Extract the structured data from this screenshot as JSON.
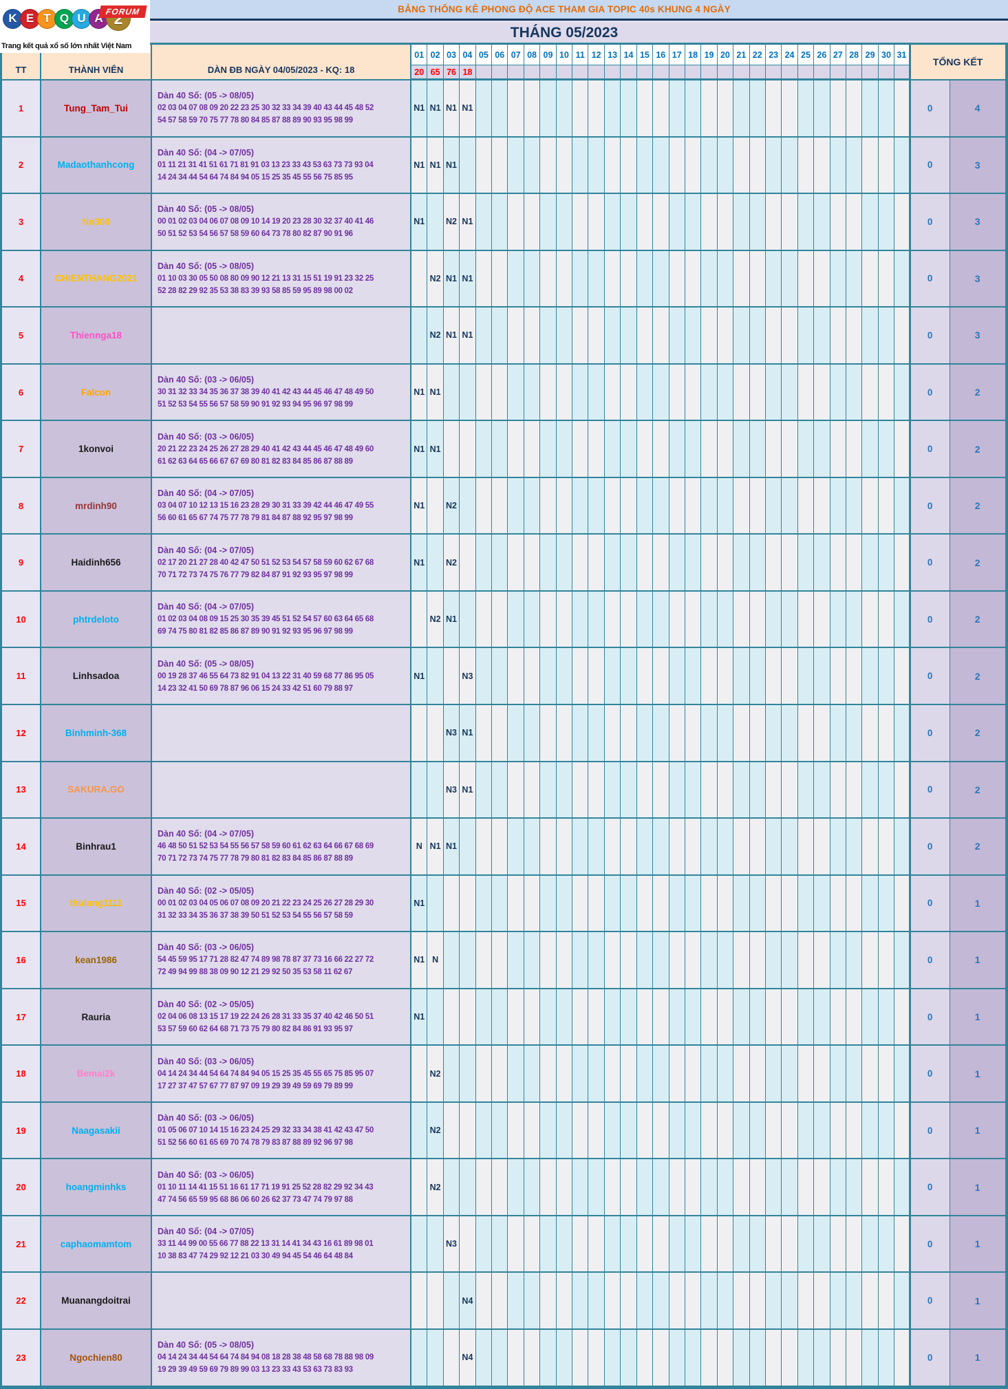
{
  "logo": {
    "brand_letters": [
      "K",
      "E",
      "T",
      "Q",
      "U",
      "A",
      "2"
    ],
    "brand_letter_colors": [
      "#2459a8",
      "#d2232a",
      "#f7941d",
      "#00a651",
      "#27aae1",
      "#92278f",
      "#a8852a"
    ],
    "forum_label": "FORUM",
    "tagline": "Trang kết quả xổ số lớn nhất Việt Nam"
  },
  "header": {
    "title": "BẢNG THỐNG KÊ PHONG ĐỘ ACE THAM GIA TOPIC 40s KHUNG 4 NGÀY",
    "subtitle": "THÁNG 05/2023"
  },
  "colors": {
    "teal_border": "#31849b",
    "day_cell_cyan": "#d9eef4",
    "day_cell_plain": "#f0f0f2",
    "header_peach": "#fde4cd",
    "title_orange": "#e36c09",
    "navy": "#17365d",
    "red": "#ff0000",
    "purple_text": "#7030a0",
    "member_col_bg": "#cbc1da",
    "total_text": "#2e75b6"
  },
  "table": {
    "col_tt": "TT",
    "col_member": "THÀNH VIÊN",
    "col_dan": "DÀN ĐB NGÀY 04/05/2023 - KQ: 18",
    "col_total": "TỔNG KẾT",
    "day_columns": [
      "01",
      "02",
      "03",
      "04",
      "05",
      "06",
      "07",
      "08",
      "09",
      "10",
      "11",
      "12",
      "13",
      "14",
      "15",
      "16",
      "17",
      "18",
      "19",
      "20",
      "21",
      "22",
      "23",
      "24",
      "25",
      "26",
      "27",
      "28",
      "29",
      "30",
      "31"
    ],
    "day_results": {
      "01": "20",
      "02": "65",
      "03": "76",
      "04": "18"
    },
    "rows": [
      {
        "tt": "1",
        "member": "Tung_Tam_Tui",
        "member_color": "#c00000",
        "dan_title": "Dàn 40 Số: (05 -> 08/05)",
        "dan_line1": "02 03 04 07 08 09 20 22 23 25 30 32 33 34 39 40 43 44 45 48 52",
        "dan_line2": "54 57 58 59 70 75 77 78 80 84 85 87 88 89 90 93 95 98 99",
        "marks": {
          "01": "N1",
          "02": "N1",
          "03": "N1",
          "04": "N1"
        },
        "total_zero": "0",
        "total": "4"
      },
      {
        "tt": "2",
        "member": "Madaothanhcong",
        "member_color": "#00b0f0",
        "dan_title": "Dàn 40 Số: (04 -> 07/05)",
        "dan_line1": "01 11 21 31 41 51 61 71 81 91 03 13 23 33 43 53 63 73 73 93 04",
        "dan_line2": "14 24 34 44 54 64 74 84 94 05 15 25 35 45 55 56 75 85 95",
        "marks": {
          "01": "N1",
          "02": "N1",
          "03": "N1"
        },
        "total_zero": "0",
        "total": "3"
      },
      {
        "tt": "3",
        "member": "Nn300",
        "member_color": "#ffc000",
        "dan_title": "Dàn 40 Số: (05 -> 08/05)",
        "dan_line1": "00 01 02 03 04 06 07 08 09 10 14 19 20 23 28 30 32 37 40 41 46",
        "dan_line2": "50 51 52 53 54 56 57 58 59 60 64 73 78 80 82 87 90 91 96",
        "marks": {
          "01": "N1",
          "03": "N2",
          "04": "N1"
        },
        "total_zero": "0",
        "total": "3"
      },
      {
        "tt": "4",
        "member": "CHIENTHANG2021",
        "member_color": "#ffc000",
        "dan_title": "Dàn 40 Số: (05 -> 08/05)",
        "dan_line1": "01 10 03 30 05 50 08 80 09 90 12 21 13 31 15 51 19 91 23 32 25",
        "dan_line2": "52 28 82 29 92 35 53 38 83 39 93 58 85 59 95 89 98 00 02",
        "marks": {
          "02": "N2",
          "03": "N1",
          "04": "N1"
        },
        "total_zero": "0",
        "total": "3"
      },
      {
        "tt": "5",
        "member": "Thiennga18",
        "member_color": "#ff4fc3",
        "dan_title": "",
        "dan_line1": "",
        "dan_line2": "",
        "marks": {
          "02": "N2",
          "03": "N1",
          "04": "N1"
        },
        "total_zero": "0",
        "total": "3"
      },
      {
        "tt": "6",
        "member": "Falcon",
        "member_color": "#ffa500",
        "dan_title": "Dàn 40 Số: (03 -> 06/05)",
        "dan_line1": "30 31 32 33 34 35 36 37 38 39 40 41 42 43 44 45 46 47 48 49 50",
        "dan_line2": "51 52 53 54 55 56 57 58 59 90 91 92 93 94 95 96 97 98 99",
        "marks": {
          "01": "N1",
          "02": "N1"
        },
        "total_zero": "0",
        "total": "2"
      },
      {
        "tt": "7",
        "member": "1konvoi",
        "member_color": "#1a1a1a",
        "dan_title": "Dàn 40 Số: (03 -> 06/05)",
        "dan_line1": "20 21 22 23 24 25 26 27 28 29 40 41 42 43 44 45 46 47 48 49 60",
        "dan_line2": "61 62 63 64 65 66 67 67 69 80 81 82 83 84 85 86 87 88 89",
        "marks": {
          "01": "N1",
          "02": "N1"
        },
        "total_zero": "0",
        "total": "2"
      },
      {
        "tt": "8",
        "member": "mrdinh90",
        "member_color": "#953735",
        "dan_title": "Dàn 40 Số: (04 -> 07/05)",
        "dan_line1": "03 04 07 10 12 13 15 16 23 28 29 30 31 33 39 42 44 46 47 49 55",
        "dan_line2": "56 60 61 65 67 74 75 77 78 79 81 84 87 88 92 95 97 98 99",
        "marks": {
          "01": "N1",
          "03": "N2"
        },
        "total_zero": "0",
        "total": "2"
      },
      {
        "tt": "9",
        "member": "Haidinh656",
        "member_color": "#1a1a1a",
        "dan_title": "Dàn 40 Số: (04 -> 07/05)",
        "dan_line1": "02 17 20 21 27 28 40 42 47 50 51 52 53 54 57 58 59 60 62 67 68",
        "dan_line2": "70 71 72 73 74 75 76 77 79 82 84 87 91 92 93 95 97 98 99",
        "marks": {
          "01": "N1",
          "03": "N2"
        },
        "total_zero": "0",
        "total": "2"
      },
      {
        "tt": "10",
        "member": "phtrdeloto",
        "member_color": "#00b0f0",
        "dan_title": "Dàn 40 Số: (04 -> 07/05)",
        "dan_line1": "01 02 03 04 08 09 15 25 30 35 39 45 51 52 54 57 60 63 64 65 68",
        "dan_line2": "69 74 75 80 81 82 85 86 87 89 90 91 92 93 95 96 97 98 99",
        "marks": {
          "02": "N2",
          "03": "N1"
        },
        "total_zero": "0",
        "total": "2"
      },
      {
        "tt": "11",
        "member": "Linhsadoa",
        "member_color": "#1a1a1a",
        "dan_title": "Dàn 40 Số: (05 -> 08/05)",
        "dan_line1": "00 19 28 37 46 55 64 73 82 91 04 13 22 31 40 59 68 77 86 95 05",
        "dan_line2": "14 23 32 41 50 69 78 87 96 06 15 24 33 42 51 60 79 88 97",
        "marks": {
          "01": "N1",
          "04": "N3"
        },
        "total_zero": "0",
        "total": "2"
      },
      {
        "tt": "12",
        "member": "Binhminh-368",
        "member_color": "#00b0f0",
        "dan_title": "",
        "dan_line1": "",
        "dan_line2": "",
        "marks": {
          "03": "N3",
          "04": "N1"
        },
        "total_zero": "0",
        "total": "2"
      },
      {
        "tt": "13",
        "member": "SAKURA.GO",
        "member_color": "#f79646",
        "dan_title": "",
        "dan_line1": "",
        "dan_line2": "",
        "marks": {
          "03": "N3",
          "04": "N1"
        },
        "total_zero": "0",
        "total": "2"
      },
      {
        "tt": "14",
        "member": "Binhrau1",
        "member_color": "#1a1a1a",
        "dan_title": "Dàn 40 Số: (04 -> 07/05)",
        "dan_line1": "46 48 50 51 52 53 54 55 56 57 58 59 60 61 62 63 64 66 67 68 69",
        "dan_line2": "70 71 72 73 74 75 77 78 79 80 81 82 83 84 85 86 87 88 89",
        "marks": {
          "01": "N",
          "02": "N1",
          "03": "N1"
        },
        "total_zero": "0",
        "total": "2"
      },
      {
        "tt": "15",
        "member": "thulang1111",
        "member_color": "#ffc000",
        "dan_title": "Dàn 40 Số: (02 -> 05/05)",
        "dan_line1": "00 01 02 03 04 05 06 07 08 09 20 21 22 23 24 25 26 27 28 29 30",
        "dan_line2": "31 32 33 34 35 36 37 38 39 50 51 52 53 54 55 56 57 58 59",
        "marks": {
          "01": "N1"
        },
        "total_zero": "0",
        "total": "1"
      },
      {
        "tt": "16",
        "member": "kean1986",
        "member_color": "#9a6700",
        "dan_title": "Dàn 40 Số: (03 -> 06/05)",
        "dan_line1": "54 45 59 95 17 71 28 82 47 74 89 98 78 87 37 73 16 66 22 27 72",
        "dan_line2": "72 49 94 99 88 38 09 90 12 21 29 92 50 35 53 58 11 62 67",
        "marks": {
          "01": "N1",
          "02": "N"
        },
        "total_zero": "0",
        "total": "1"
      },
      {
        "tt": "17",
        "member": "Rauria",
        "member_color": "#1a1a1a",
        "dan_title": "Dàn 40 Số: (02 -> 05/05)",
        "dan_line1": "02 04 06 08 13 15 17 19 22 24 26 28 31 33 35 37 40 42 46 50 51",
        "dan_line2": "53 57 59 60 62 64 68 71 73 75 79 80 82 84 86 91 93 95 97",
        "marks": {
          "01": "N1"
        },
        "total_zero": "0",
        "total": "1"
      },
      {
        "tt": "18",
        "member": "Bemai2k",
        "member_color": "#ff80cc",
        "dan_title": "Dàn 40 Số: (03 -> 06/05)",
        "dan_line1": "04 14 24 34 44 54 64 74 84 94 05 15 25 35 45 55 65 75 85 95 07",
        "dan_line2": "17 27 37 47 57 67 77 87 97 09 19 29 39 49 59 69 79 89 99",
        "marks": {
          "02": "N2"
        },
        "total_zero": "0",
        "total": "1"
      },
      {
        "tt": "19",
        "member": "Naagasakii",
        "member_color": "#00b0f0",
        "dan_title": "Dàn 40 Số: (03 -> 06/05)",
        "dan_line1": "01 05 06 07 10 14 15 16 23 24 25 29 32 33 34 38 41 42 43 47 50",
        "dan_line2": "51 52 56 60 61 65 69 70 74 78 79 83 87 88 89 92 96 97 98",
        "marks": {
          "02": "N2"
        },
        "total_zero": "0",
        "total": "1"
      },
      {
        "tt": "20",
        "member": "hoangminhks",
        "member_color": "#00b0f0",
        "dan_title": "Dàn 40 Số: (03 -> 06/05)",
        "dan_line1": "01 10 11 14 41 15 51 16 61 17 71 19 91 25 52 28 82 29 92 34 43",
        "dan_line2": "47 74 56 65 59 95 68 86 06 60 26 62 37 73 47 74 79 97 88",
        "marks": {
          "02": "N2"
        },
        "total_zero": "0",
        "total": "1"
      },
      {
        "tt": "21",
        "member": "caphaomamtom",
        "member_color": "#00b0f0",
        "dan_title": "Dàn 40 Số: (04 -> 07/05)",
        "dan_line1": "33 11 44 99 00 55 66 77 88 22 13 31 14 41 34 43 16 61 89 98 01",
        "dan_line2": "10 38 83 47 74 29 92 12 21 03 30 49 94 45 54 46 64 48 84",
        "marks": {
          "03": "N3"
        },
        "total_zero": "0",
        "total": "1"
      },
      {
        "tt": "22",
        "member": "Muanangdoitrai",
        "member_color": "#1a1a1a",
        "dan_title": "",
        "dan_line1": "",
        "dan_line2": "",
        "marks": {
          "04": "N4"
        },
        "total_zero": "0",
        "total": "1"
      },
      {
        "tt": "23",
        "member": "Ngochien80",
        "member_color": "#a5530a",
        "dan_title": "Dàn 40 Số: (05 -> 08/05)",
        "dan_line1": "04 14 24 34 44 54 64 74 84 94 08 18 28 38 48 58 68 78 88 98 09",
        "dan_line2": "19 29 39 49 59 69 79 89 99 03 13 23 33 43 53 63 73 83 93",
        "marks": {
          "04": "N4"
        },
        "total_zero": "0",
        "total": "1"
      }
    ]
  }
}
